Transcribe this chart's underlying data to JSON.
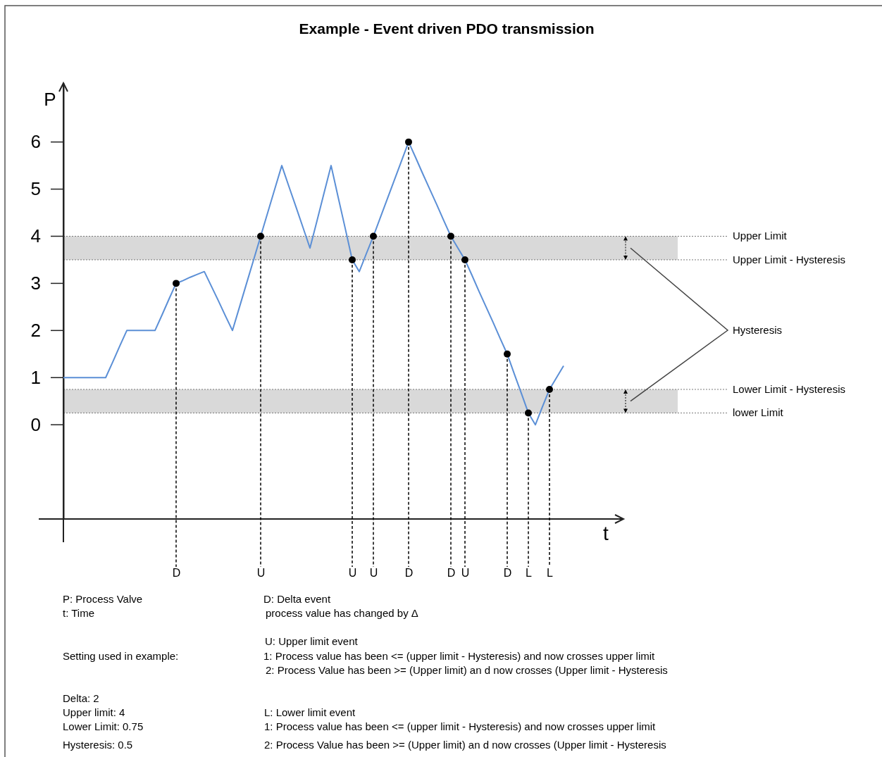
{
  "chart_data": {
    "type": "line",
    "title": "Example - Event driven PDO transmission",
    "xlabel": "t",
    "ylabel": "P",
    "ylim": [
      -2,
      7.25
    ],
    "yticks": [
      0,
      1,
      2,
      3,
      4,
      5,
      6
    ],
    "grid": "x",
    "categories": [
      null,
      null,
      null,
      null,
      null,
      null,
      null,
      null,
      null,
      null,
      null,
      null,
      null,
      null,
      null,
      null,
      "D",
      null,
      null,
      null,
      null,
      null,
      null,
      null,
      null,
      null,
      null,
      null,
      "U",
      null,
      null,
      null,
      null,
      null,
      null,
      null,
      null,
      null,
      null,
      null,
      null,
      "U",
      null,
      null,
      "U",
      null,
      null,
      null,
      null,
      "D",
      null,
      null,
      null,
      null,
      null,
      "D",
      null,
      "U",
      null,
      null,
      null,
      null,
      null,
      "D",
      null,
      null,
      "L",
      null,
      null,
      "L",
      null,
      null
    ],
    "series": [
      {
        "color": "#5b8fd6",
        "values": [
          1,
          1,
          1,
          1,
          1,
          1,
          1,
          1.33,
          1.67,
          2,
          2,
          2,
          2,
          2,
          2.33,
          2.67,
          3,
          3.06,
          3.13,
          3.19,
          3.25,
          2.94,
          2.63,
          2.31,
          2,
          2.5,
          3,
          3.5,
          4,
          4.5,
          5,
          5.5,
          5.06,
          4.63,
          4.19,
          3.75,
          4.33,
          4.92,
          5.5,
          4.83,
          4.17,
          3.5,
          3.25,
          3.63,
          4,
          4.4,
          4.8,
          5.2,
          5.6,
          6,
          5.67,
          5.33,
          5,
          4.67,
          4.33,
          4,
          3.75,
          3.5,
          3.17,
          2.83,
          2.5,
          2.17,
          1.83,
          1.5,
          1.08,
          0.67,
          0.25,
          0,
          0.38,
          0.75,
          1,
          1.25
        ]
      }
    ],
    "bands": [
      {
        "axis": "y",
        "from": 3.5,
        "to": 4,
        "color": "#d9d9d9"
      },
      {
        "axis": "y",
        "from": 0.25,
        "to": 0.75,
        "color": "#d9d9d9"
      }
    ],
    "ref_lines": [
      {
        "axis": "y",
        "value": 4,
        "label": "Upper Limit",
        "line_style": "dotted"
      },
      {
        "axis": "y",
        "value": 3.5,
        "label": "Upper Limit - Hysteresis",
        "line_style": "dotted"
      },
      {
        "axis": "y",
        "value": 0.75,
        "label": "Lower Limit - Hysteresis",
        "line_style": "dotted"
      },
      {
        "axis": "y",
        "value": 0.25,
        "label": "lower Limit",
        "line_style": "dotted"
      }
    ],
    "annotations": [
      "Hysteresis",
      "P:  Process Valve",
      "t: Time",
      "Setting used in example:",
      "Delta: 2",
      "Upper limit: 4",
      "Lower Limit: 0.75",
      "Hysteresis: 0.5",
      "D: Delta event",
      "process value has changed by Δ",
      "U: Upper limit event",
      "1: Process value has been <= (upper limit - Hysteresis) and now crosses upper limit",
      "2: Process Value has been >= (Upper limit) an d now crosses (Upper limit - Hysteresis",
      "L:  Lower limit event",
      "1:  Process value has been <= (upper limit - Hysteresis) and now crosses upper limit",
      "2:  Process Value has been >= (Upper limit) an d now crosses (Upper limit - Hysteresis"
    ]
  }
}
